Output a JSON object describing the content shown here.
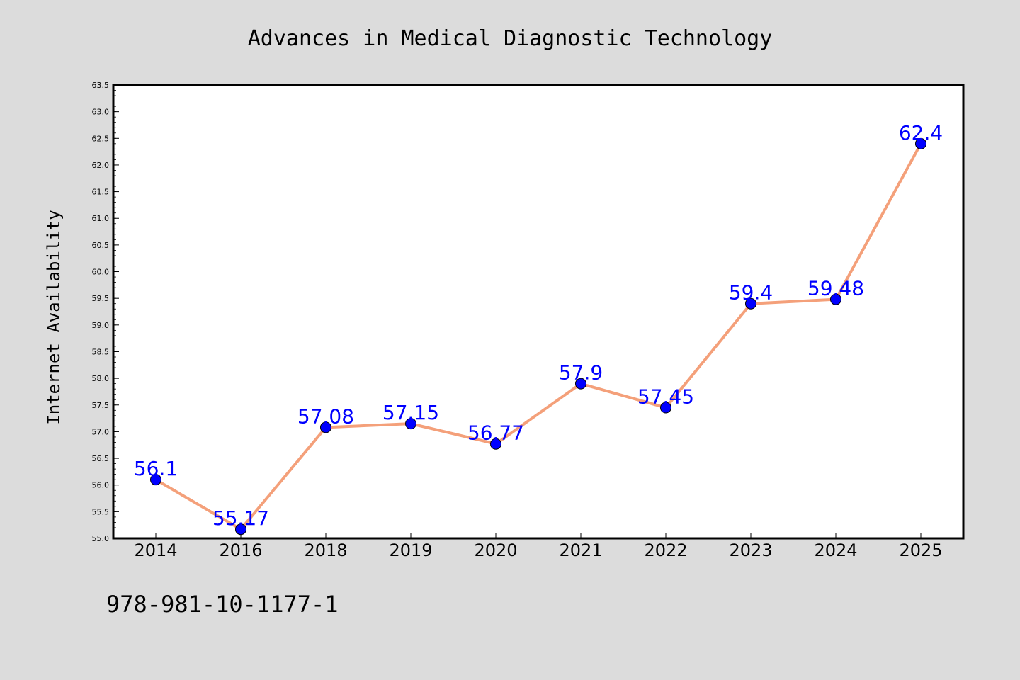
{
  "chart_data": {
    "type": "line",
    "title": "Advances in Medical Diagnostic Technology",
    "xlabel": "",
    "ylabel": "Internet Availability",
    "categories": [
      "2014",
      "2016",
      "2018",
      "2019",
      "2020",
      "2021",
      "2022",
      "2023",
      "2024",
      "2025"
    ],
    "series": [
      {
        "values": [
          56.1,
          55.17,
          57.08,
          57.15,
          56.77,
          57.9,
          57.45,
          59.4,
          59.48,
          62.4
        ],
        "line_color": "#f4a07a",
        "marker_color": "#0000ff"
      }
    ],
    "data_labels": [
      "56.1",
      "55.17",
      "57.08",
      "57.15",
      "56.77",
      "57.9",
      "57.45",
      "59.4",
      "59.48",
      "62.4"
    ],
    "ylim": [
      55.0,
      63.5
    ],
    "y_ticks": [
      "55.0",
      "55.5",
      "56.0",
      "56.5",
      "57.0",
      "57.5",
      "58.0",
      "58.5",
      "59.0",
      "59.5",
      "60.0",
      "60.5",
      "61.0",
      "61.5",
      "62.0",
      "62.5",
      "63.0",
      "63.5"
    ],
    "grid": false,
    "legend": "none",
    "label_color": "#0000ff"
  },
  "footer_text": "978-981-10-1177-1",
  "colors": {
    "background": "#dcdcdc",
    "plot_background": "#ffffff",
    "axis": "#000000"
  }
}
